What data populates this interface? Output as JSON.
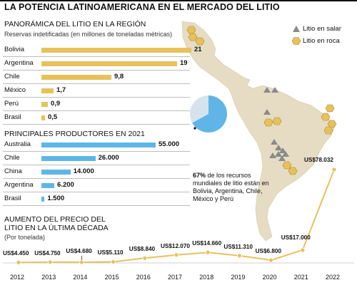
{
  "title": "LA POTENCIA LATINOAMERICANA EN EL MERCADO DEL LITIO",
  "legend": {
    "salar": "Litio en salar",
    "roca": "Litio en roca"
  },
  "colors": {
    "yellow": "#e8c15a",
    "blue": "#5fb6e6",
    "map": "#e6dcc3",
    "triangle": "#8a8a8a"
  },
  "pie_note": {
    "pct": "67%",
    "text": "de los recursos mundiales de litio están en Bolivia, Argentina, Chile, México y Perú"
  },
  "chart_data": [
    {
      "type": "bar",
      "title": "PANORÁMICA DEL LITIO EN LA REGIÓN",
      "subtitle": "Reservas indetificadas (en millones de toneladas métricas)",
      "categories": [
        "Bolivia",
        "Argentina",
        "Chile",
        "México",
        "Perú",
        "Brasil"
      ],
      "values": [
        21,
        19,
        9.8,
        1.7,
        0.9,
        0.5
      ],
      "labels": [
        "21",
        "19",
        "9,8",
        "1,7",
        "0,9",
        "0,5"
      ],
      "max": 21
    },
    {
      "type": "bar",
      "title": "PRINCIPALES PRODUCTORES EN 2021",
      "categories": [
        "Australia",
        "Chile",
        "China",
        "Argentina",
        "Brasil"
      ],
      "values": [
        55000,
        26000,
        14000,
        6200,
        1500
      ],
      "labels": [
        "55.000",
        "26.000",
        "14.000",
        "6.200",
        "1.500"
      ],
      "max": 55000
    },
    {
      "type": "pie",
      "values": [
        67,
        33
      ],
      "labels": [
        "67%",
        ""
      ]
    },
    {
      "type": "line",
      "title": "AUMENTO DEL PRECIO DEL LITIO EN LA ÚLTIMA DÉCADA",
      "subtitle": "(Por tonelada)",
      "x": [
        "2012",
        "2013",
        "2014",
        "2015",
        "2016",
        "2017",
        "2018",
        "2019",
        "2020",
        "2021",
        "2022"
      ],
      "y": [
        4450,
        4750,
        4680,
        5110,
        8840,
        12070,
        14660,
        11310,
        6800,
        17000,
        78032
      ],
      "labels": [
        "US$4.450",
        "US$4.750",
        "US$4.680",
        "US$5.110",
        "US$8.840",
        "US$12.070",
        "US$14.660",
        "US$11.310",
        "US$6.800",
        "US$17.000",
        "US$78.032"
      ]
    }
  ]
}
